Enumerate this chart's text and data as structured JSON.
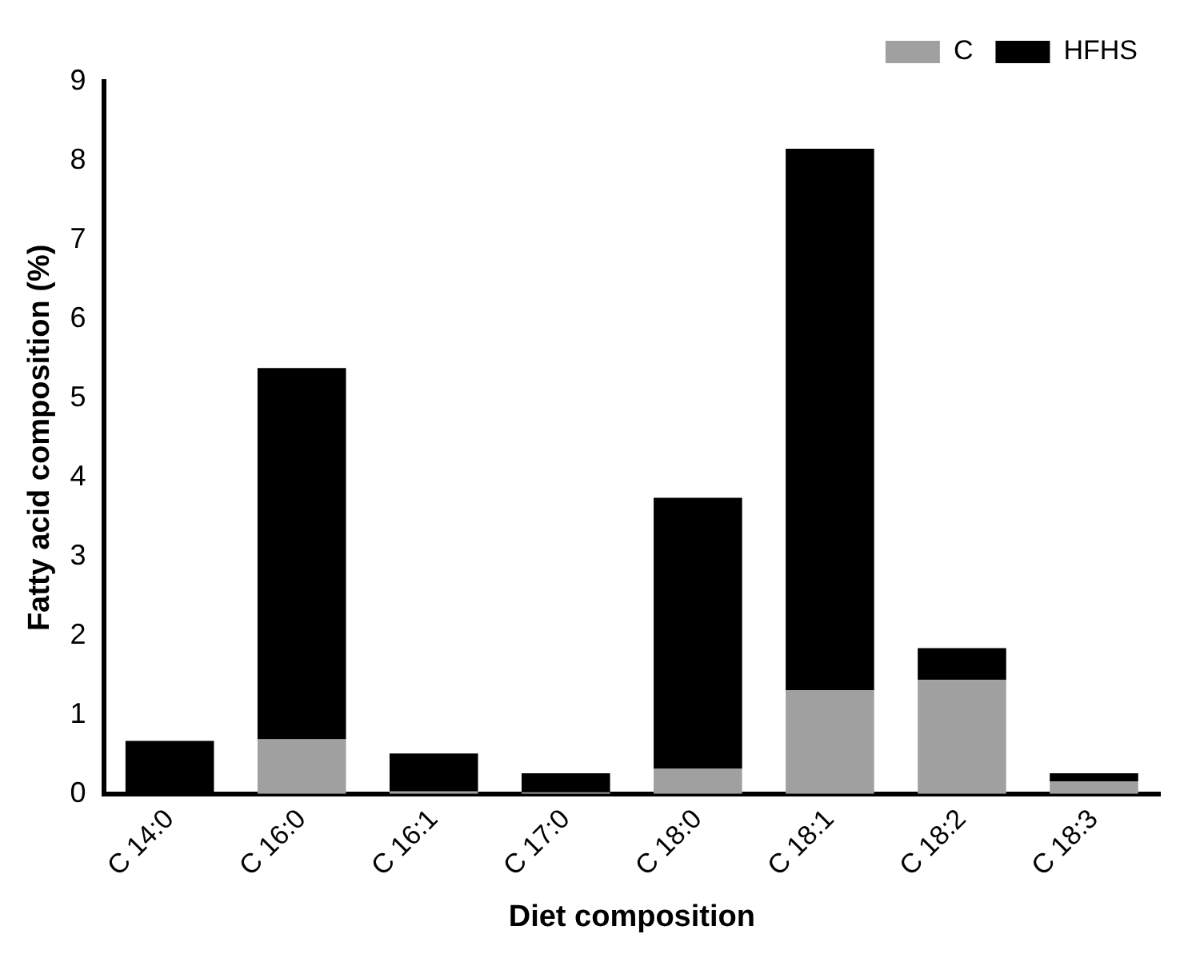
{
  "chart_data": {
    "type": "bar",
    "stacked": true,
    "xlabel": "Diet composition",
    "ylabel": "Fatty acid composition (%)",
    "categories": [
      "C 14:0",
      "C 16:0",
      "C 16:1",
      "C 17:0",
      "C 18:0",
      "C 18:1",
      "C 18:2",
      "C 18:3"
    ],
    "series": [
      {
        "name": "C",
        "color": "#a0a0a0",
        "values": [
          null,
          0.69,
          0.03,
          0.02,
          0.32,
          1.31,
          1.44,
          0.16
        ]
      },
      {
        "name": "HFHS",
        "color": "#000000",
        "values": [
          0.67,
          4.69,
          0.48,
          0.24,
          3.42,
          6.84,
          0.4,
          0.1
        ]
      }
    ],
    "ylim": [
      0,
      9
    ],
    "yticks": [
      0,
      1,
      2,
      3,
      4,
      5,
      6,
      7,
      8,
      9
    ],
    "grid": false,
    "legend": "top right"
  }
}
